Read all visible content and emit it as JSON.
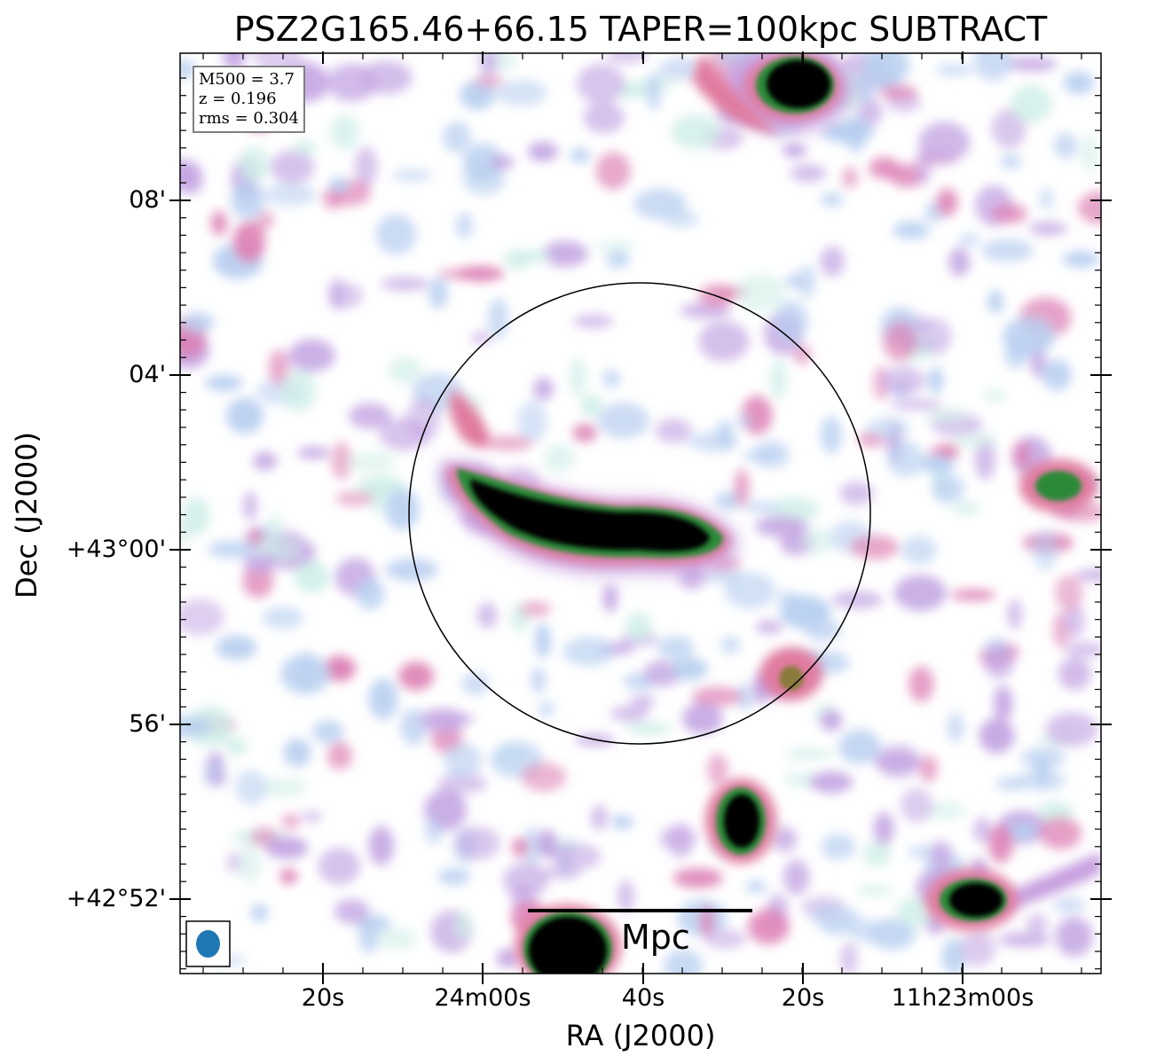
{
  "title": "PSZ2G165.46+66.15 TAPER=100kpc SUBTRACT",
  "axes": {
    "xlabel": "RA (J2000)",
    "ylabel": "Dec (J2000)",
    "xticks": [
      "20s",
      "24m00s",
      "40s",
      "20s",
      "11h23m00s"
    ],
    "yticks": [
      "08'",
      "04'",
      "+43°00'",
      "56'",
      "+42°52'"
    ]
  },
  "info": {
    "m500": "M500 = 3.7",
    "z": "z = 0.196",
    "rms": "rms = 0.304"
  },
  "scalebar": {
    "label": "Mpc"
  },
  "colors": {
    "beam": "#1f77b4",
    "frame": "#000000",
    "colormap": [
      "#ffffff",
      "#cfeee8",
      "#b8cff0",
      "#c4a6e3",
      "#dd80b4",
      "#e8728c",
      "#2f8f3a",
      "#000000"
    ]
  }
}
